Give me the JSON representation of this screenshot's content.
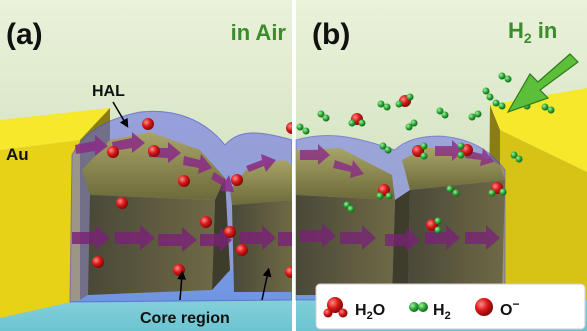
{
  "panel_a": {
    "tag": "(a)",
    "condition": "in Air",
    "labels": {
      "hal": "HAL",
      "au": "Au",
      "core": "Core region"
    }
  },
  "panel_b": {
    "tag": "(b)",
    "condition_main": "H",
    "condition_sub": "2",
    "condition_tail": " in"
  },
  "legend": {
    "water_main": "H",
    "water_sub": "2",
    "water_tail": "O",
    "hydrogen_main": "H",
    "hydrogen_sub": "2",
    "oxygen_main": "O",
    "oxygen_sup": "−"
  },
  "colors": {
    "background_top": "#e6f0d4",
    "background_bottom": "#c9dcb6",
    "floor": "#8fd3dc",
    "grain": "#7d7a48",
    "hal_layer": "#6a6ee0",
    "gold": "#f2e21a",
    "arrows": "#8e2a8a",
    "oxygen": "#d61a1a",
    "hydrogen": "#2aa83a",
    "condition_text": "#3a8c2c",
    "h2_arrow": "#55b83a"
  }
}
